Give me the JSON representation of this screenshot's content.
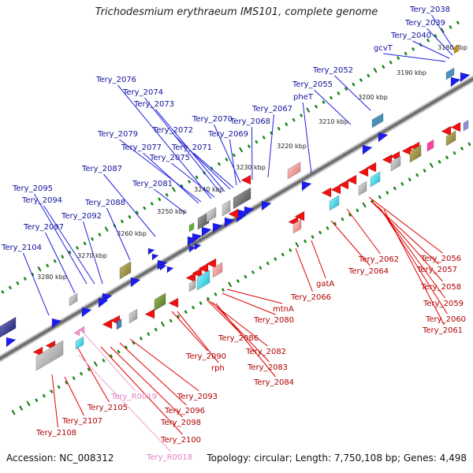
{
  "title": "Trichodesmium erythraeum IMS101, complete genome",
  "footer": {
    "accession": "Accession: NC_008312",
    "summary": "Topology: circular; Length: 7,750,108 bp; Genes: 4,498"
  },
  "colors": {
    "forward": "#2020e0",
    "reverse": "#e00000",
    "rna": "#f0a0d0",
    "backbone": "#9a9a9a",
    "tick_green": "#1a8a1a"
  },
  "scale_labels": [
    "3180 kbp",
    "3190 kbp",
    "3200 kbp",
    "3210 kbp",
    "3220 kbp",
    "3230 kbp",
    "3240 kbp",
    "3250 kbp",
    "3260 kbp",
    "3270 kbp",
    "3280 kbp"
  ],
  "forward_labels": [
    "Tery_2038",
    "Tery_2039",
    "Tery_2040",
    "gcvT",
    "Tery_2052",
    "Tery_2055",
    "pheT",
    "Tery_2067",
    "Tery_2068",
    "Tery_2069",
    "Tery_2070",
    "Tery_2071",
    "Tery_2072",
    "Tery_2073",
    "Tery_2074",
    "Tery_2075",
    "Tery_2076",
    "Tery_2077",
    "Tery_2079",
    "Tery_2081",
    "Tery_2087",
    "Tery_2088",
    "Tery_2092",
    "Tery_2094",
    "Tery_2095",
    "Tery_2097",
    "Tery_2104"
  ],
  "reverse_labels": [
    "Tery_2056",
    "Tery_2057",
    "Tery_2058",
    "Tery_2059",
    "Tery_2060",
    "Tery_2061",
    "Tery_2062",
    "Tery_2064",
    "gatA",
    "Tery_2066",
    "mtnA",
    "Tery_2080",
    "Tery_2086",
    "Tery_2082",
    "Tery_2083",
    "Tery_2084",
    "Tery_2090",
    "rph",
    "Tery_2093",
    "Tery_2096",
    "Tery_2098",
    "Tery_2100",
    "Tery_2105",
    "Tery_2107",
    "Tery_2108"
  ],
  "rna_labels": [
    "Tery_R0019",
    "Tery_R0018"
  ]
}
